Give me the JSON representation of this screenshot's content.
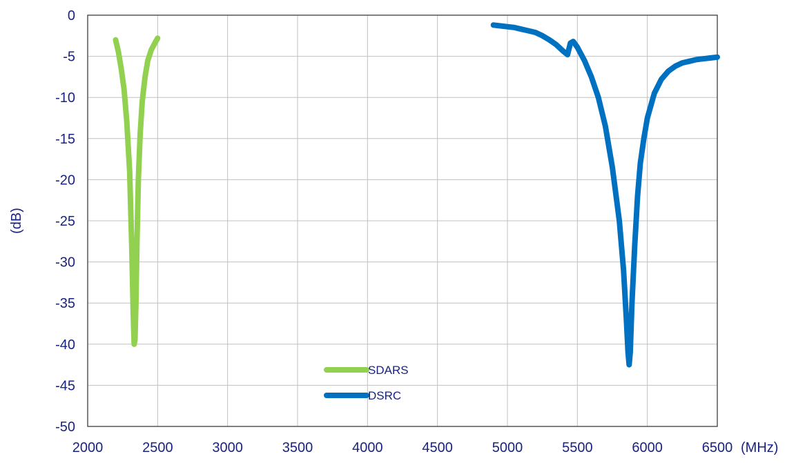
{
  "chart_data": {
    "type": "line",
    "title": "",
    "xlabel": "(MHz)",
    "ylabel": "(dB)",
    "xlim": [
      2000,
      6500
    ],
    "ylim": [
      -50,
      0
    ],
    "x_ticks": [
      2000,
      2500,
      3000,
      3500,
      4000,
      4500,
      5000,
      5500,
      6000,
      6500
    ],
    "y_ticks": [
      0,
      -5,
      -10,
      -15,
      -20,
      -25,
      -30,
      -35,
      -40,
      -45,
      -50
    ],
    "x_tick_labels": [
      "2000",
      "2500",
      "3000",
      "3500",
      "4000",
      "4500",
      "5000",
      "5500",
      "6000",
      "6500"
    ],
    "y_tick_labels": [
      "0",
      "-5",
      "-10",
      "-15",
      "-20",
      "-25",
      "-30",
      "-35",
      "-40",
      "-45",
      "-50"
    ],
    "grid": true,
    "legend_position": "bottom-center",
    "colors": {
      "text": "#1a237e",
      "grid": "#c0c0c0",
      "frame": "#555555"
    },
    "series": [
      {
        "name": "SDARS",
        "color": "#92d050",
        "points": [
          [
            2200,
            -3.0
          ],
          [
            2220,
            -4.5
          ],
          [
            2240,
            -6.5
          ],
          [
            2260,
            -9.0
          ],
          [
            2280,
            -13.0
          ],
          [
            2300,
            -19.0
          ],
          [
            2315,
            -28.0
          ],
          [
            2325,
            -36.0
          ],
          [
            2332,
            -40.0
          ],
          [
            2338,
            -39.5
          ],
          [
            2345,
            -35.0
          ],
          [
            2352,
            -28.0
          ],
          [
            2362,
            -20.0
          ],
          [
            2375,
            -14.5
          ],
          [
            2390,
            -10.5
          ],
          [
            2410,
            -7.5
          ],
          [
            2430,
            -5.5
          ],
          [
            2455,
            -4.2
          ],
          [
            2480,
            -3.4
          ],
          [
            2500,
            -2.8
          ]
        ]
      },
      {
        "name": "DSRC",
        "color": "#0070c0",
        "points": [
          [
            4900,
            -1.2
          ],
          [
            4950,
            -1.3
          ],
          [
            5000,
            -1.4
          ],
          [
            5050,
            -1.5
          ],
          [
            5100,
            -1.7
          ],
          [
            5150,
            -1.9
          ],
          [
            5200,
            -2.1
          ],
          [
            5250,
            -2.5
          ],
          [
            5300,
            -3.0
          ],
          [
            5350,
            -3.6
          ],
          [
            5400,
            -4.4
          ],
          [
            5430,
            -4.8
          ],
          [
            5450,
            -3.4
          ],
          [
            5470,
            -3.2
          ],
          [
            5500,
            -3.9
          ],
          [
            5550,
            -5.5
          ],
          [
            5600,
            -7.5
          ],
          [
            5650,
            -10.0
          ],
          [
            5700,
            -13.5
          ],
          [
            5750,
            -18.5
          ],
          [
            5800,
            -25.0
          ],
          [
            5830,
            -31.0
          ],
          [
            5850,
            -37.0
          ],
          [
            5862,
            -41.0
          ],
          [
            5870,
            -42.5
          ],
          [
            5878,
            -41.0
          ],
          [
            5890,
            -35.0
          ],
          [
            5910,
            -28.0
          ],
          [
            5930,
            -22.0
          ],
          [
            5950,
            -18.0
          ],
          [
            5975,
            -15.0
          ],
          [
            6000,
            -12.5
          ],
          [
            6050,
            -9.5
          ],
          [
            6100,
            -7.8
          ],
          [
            6150,
            -6.8
          ],
          [
            6200,
            -6.2
          ],
          [
            6250,
            -5.8
          ],
          [
            6300,
            -5.6
          ],
          [
            6350,
            -5.4
          ],
          [
            6400,
            -5.3
          ],
          [
            6450,
            -5.2
          ],
          [
            6500,
            -5.1
          ]
        ]
      }
    ]
  }
}
